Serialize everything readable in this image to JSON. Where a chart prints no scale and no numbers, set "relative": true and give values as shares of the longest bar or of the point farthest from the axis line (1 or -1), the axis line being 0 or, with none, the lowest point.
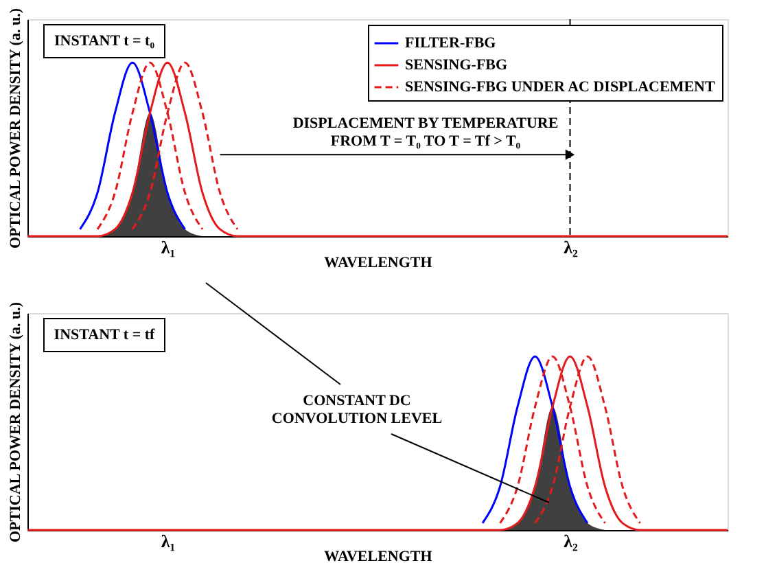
{
  "chart_data": [
    {
      "type": "line",
      "relative": true,
      "xlabel": "WAVELENGTH",
      "ylabel": "OPTICAL POWER DENSITY (a. u.)",
      "tick_labels": "x",
      "legend": "top right",
      "categories": [
        null,
        null,
        null,
        null,
        null,
        null,
        null,
        null,
        "λ₁",
        null,
        null,
        null,
        null,
        null,
        null,
        null,
        null,
        null,
        null,
        null,
        null,
        null,
        null,
        null,
        null,
        null,
        null,
        null,
        null,
        null,
        null,
        "λ₂",
        null,
        null,
        null,
        null,
        null,
        null,
        null,
        null,
        null
      ],
      "annotations": [
        "INSTANT t = t₀",
        "DISPLACEMENT BY TEMPERATURE\nFROM T = T₀  TO  T = Tf > T₀"
      ],
      "ref_lines": [
        {
          "axis": "x",
          "value": "λ₂",
          "line_style": "dashed",
          "color": "#000000"
        }
      ],
      "series": [
        {
          "type": "area",
          "color": "#000000",
          "values": [
            null,
            null,
            null,
            null,
            0,
            0.04,
            0.25,
            0.71,
            0.25,
            0.04,
            0,
            null,
            null,
            null,
            null,
            null,
            null,
            null,
            null,
            null,
            null,
            null,
            null,
            null,
            null,
            null,
            null,
            null,
            null,
            null,
            null,
            null,
            null,
            null,
            null,
            null,
            null,
            null,
            null,
            null,
            null
          ]
        },
        {
          "name": "FILTER-FBG",
          "color": "#0000ff",
          "line_style": "solid",
          "values": [
            null,
            null,
            null,
            0.04,
            0.25,
            0.71,
            1,
            0.71,
            0.25,
            0.04,
            null,
            null,
            null,
            null,
            null,
            null,
            null,
            null,
            null,
            null,
            null,
            null,
            null,
            null,
            null,
            null,
            null,
            null,
            null,
            null,
            null,
            null,
            null,
            null,
            null,
            null,
            null,
            null,
            null,
            null,
            null
          ]
        },
        {
          "name": "SENSING-FBG",
          "color": "#e41a1c",
          "line_style": "solid",
          "values": [
            0,
            0,
            0,
            0,
            0,
            0.04,
            0.25,
            0.71,
            1,
            0.71,
            0.25,
            0.04,
            0,
            0,
            0,
            0,
            0,
            0,
            0,
            0,
            0,
            0,
            0,
            0,
            0,
            0,
            0,
            0,
            0,
            0,
            0,
            0,
            0,
            0,
            0,
            0,
            0,
            0,
            0,
            0,
            0
          ]
        },
        {
          "name": "SENSING-FBG UNDER AC DISPLACEMENT",
          "color": "#e41a1c",
          "line_style": "dashed",
          "values": [
            null,
            null,
            null,
            null,
            0.04,
            0.25,
            0.71,
            1,
            0.71,
            0.25,
            0.04,
            null,
            null,
            null,
            null,
            null,
            null,
            null,
            null,
            null,
            null,
            null,
            null,
            null,
            null,
            null,
            null,
            null,
            null,
            null,
            null,
            null,
            null,
            null,
            null,
            null,
            null,
            null,
            null,
            null,
            null
          ]
        },
        {
          "color": "#e41a1c",
          "line_style": "dashed",
          "values": [
            null,
            null,
            null,
            null,
            null,
            null,
            0.04,
            0.25,
            0.71,
            1,
            0.71,
            0.25,
            0.04,
            null,
            null,
            null,
            null,
            null,
            null,
            null,
            null,
            null,
            null,
            null,
            null,
            null,
            null,
            null,
            null,
            null,
            null,
            null,
            null,
            null,
            null,
            null,
            null,
            null,
            null,
            null,
            null
          ]
        }
      ]
    },
    {
      "type": "line",
      "relative": true,
      "xlabel": "WAVELENGTH",
      "ylabel": "OPTICAL POWER DENSITY (a. u.)",
      "tick_labels": "x",
      "categories": [
        null,
        null,
        null,
        null,
        null,
        null,
        null,
        null,
        "λ₁",
        null,
        null,
        null,
        null,
        null,
        null,
        null,
        null,
        null,
        null,
        null,
        null,
        null,
        null,
        null,
        null,
        null,
        null,
        null,
        null,
        null,
        null,
        "λ₂",
        null,
        null,
        null,
        null,
        null,
        null,
        null,
        null,
        null
      ],
      "annotations": [
        "INSTANT t = tf",
        "CONSTANT DC\nCONVOLUTION LEVEL"
      ],
      "series": [
        {
          "type": "area",
          "color": "#000000",
          "values": [
            null,
            null,
            null,
            null,
            null,
            null,
            null,
            null,
            null,
            null,
            null,
            null,
            null,
            null,
            null,
            null,
            null,
            null,
            null,
            null,
            null,
            null,
            null,
            null,
            null,
            null,
            null,
            0,
            0.04,
            0.25,
            0.71,
            0.25,
            0.04,
            0,
            null,
            null,
            null,
            null,
            null,
            null,
            null
          ]
        },
        {
          "color": "#0000ff",
          "line_style": "solid",
          "values": [
            null,
            null,
            null,
            null,
            null,
            null,
            null,
            null,
            null,
            null,
            null,
            null,
            null,
            null,
            null,
            null,
            null,
            null,
            null,
            null,
            null,
            null,
            null,
            null,
            null,
            null,
            0.04,
            0.25,
            0.71,
            1,
            0.71,
            0.25,
            0.04,
            null,
            null,
            null,
            null,
            null,
            null,
            null,
            null
          ]
        },
        {
          "color": "#e41a1c",
          "line_style": "solid",
          "values": [
            0,
            0,
            0,
            0,
            0,
            0,
            0,
            0,
            0,
            0,
            0,
            0,
            0,
            0,
            0,
            0,
            0,
            0,
            0,
            0,
            0,
            0,
            0,
            0,
            0,
            0,
            0,
            0,
            0.04,
            0.25,
            0.71,
            1,
            0.71,
            0.25,
            0.04,
            0,
            0,
            0,
            0,
            0,
            0
          ]
        },
        {
          "color": "#e41a1c",
          "line_style": "dashed",
          "values": [
            null,
            null,
            null,
            null,
            null,
            null,
            null,
            null,
            null,
            null,
            null,
            null,
            null,
            null,
            null,
            null,
            null,
            null,
            null,
            null,
            null,
            null,
            null,
            null,
            null,
            null,
            null,
            0.04,
            0.25,
            0.71,
            1,
            0.71,
            0.25,
            0.04,
            null,
            null,
            null,
            null,
            null,
            null,
            null
          ]
        },
        {
          "color": "#e41a1c",
          "line_style": "dashed",
          "values": [
            null,
            null,
            null,
            null,
            null,
            null,
            null,
            null,
            null,
            null,
            null,
            null,
            null,
            null,
            null,
            null,
            null,
            null,
            null,
            null,
            null,
            null,
            null,
            null,
            null,
            null,
            null,
            null,
            null,
            0.04,
            0.25,
            0.71,
            1,
            0.71,
            0.25,
            0.04,
            null,
            null,
            null,
            null,
            null
          ]
        }
      ]
    }
  ]
}
